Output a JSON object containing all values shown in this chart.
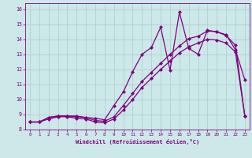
{
  "xlabel": "Windchill (Refroidissement éolien,°C)",
  "xlim": [
    -0.5,
    23.5
  ],
  "ylim": [
    8,
    16.4
  ],
  "yticks": [
    8,
    9,
    10,
    11,
    12,
    13,
    14,
    15,
    16
  ],
  "xticks": [
    0,
    1,
    2,
    3,
    4,
    5,
    6,
    7,
    8,
    9,
    10,
    11,
    12,
    13,
    14,
    15,
    16,
    17,
    18,
    19,
    20,
    21,
    22,
    23
  ],
  "background_color": "#cce8e8",
  "grid_color": "#aacccc",
  "line_color": "#800080",
  "line1_y": [
    8.5,
    8.5,
    8.8,
    8.9,
    8.9,
    8.9,
    8.8,
    8.75,
    8.65,
    9.6,
    10.5,
    11.85,
    13.0,
    13.45,
    14.8,
    11.95,
    15.8,
    13.4,
    13.0,
    14.6,
    14.5,
    14.3,
    13.3,
    11.3
  ],
  "line2_y": [
    8.5,
    8.5,
    8.8,
    8.9,
    8.9,
    8.85,
    8.8,
    8.6,
    8.55,
    8.85,
    9.6,
    10.4,
    11.2,
    11.8,
    12.4,
    13.0,
    13.55,
    14.05,
    14.2,
    14.55,
    14.5,
    14.25,
    13.6,
    8.9
  ],
  "line3_y": [
    8.5,
    8.5,
    8.7,
    8.85,
    8.85,
    8.75,
    8.7,
    8.5,
    8.45,
    8.7,
    9.3,
    10.0,
    10.8,
    11.4,
    12.0,
    12.55,
    13.1,
    13.5,
    13.75,
    14.0,
    13.95,
    13.75,
    13.15,
    8.9
  ]
}
